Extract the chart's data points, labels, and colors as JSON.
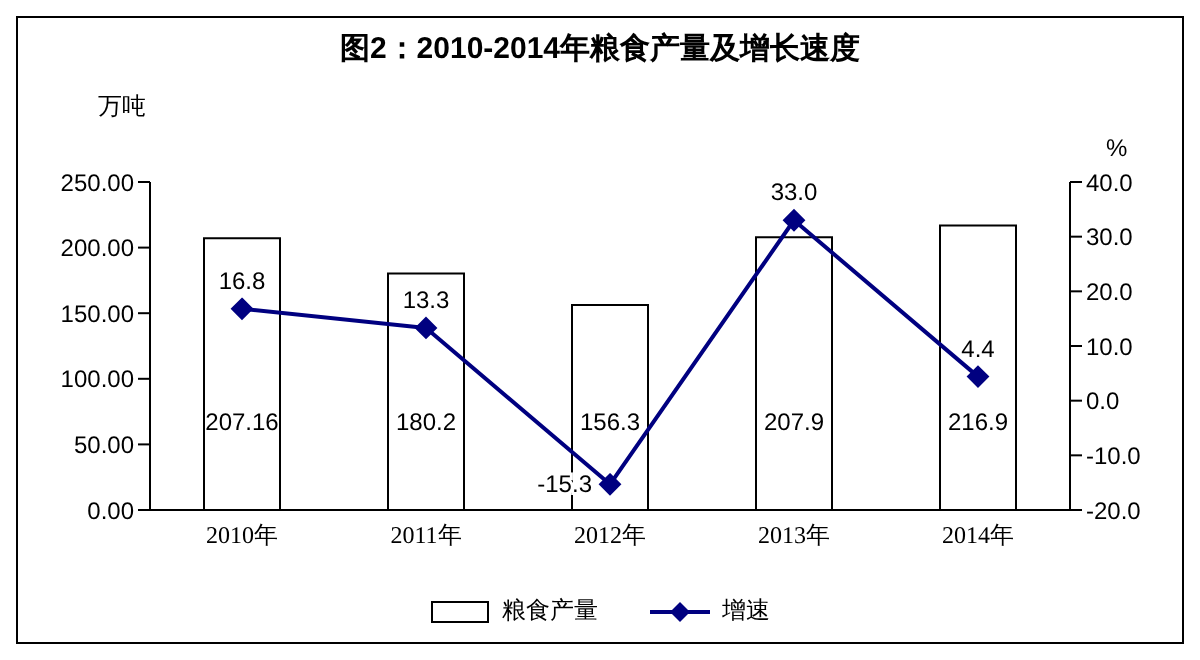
{
  "chart_data": {
    "type": "bar",
    "title": "图2：2010-2014年粮食产量及增长速度",
    "ylabel": "万吨",
    "y2label": "%",
    "categories": [
      "2010年",
      "2011年",
      "2012年",
      "2013年",
      "2014年"
    ],
    "series": [
      {
        "name": "粮食产量",
        "color": "#ffffff",
        "values": [
          207.16,
          180.2,
          156.3,
          207.9,
          216.9
        ],
        "value_labels": [
          "207.16",
          "180.2",
          "156.3",
          "207.9",
          "216.9"
        ]
      },
      {
        "name": "增速",
        "type": "line",
        "axis": "y2",
        "color": "#000080",
        "marker": "diamond",
        "values": [
          16.8,
          13.3,
          -15.3,
          33.0,
          4.4
        ],
        "value_labels": [
          "16.8",
          "13.3",
          "-15.3",
          "33.0",
          "4.4"
        ]
      }
    ],
    "ylim": [
      0,
      250
    ],
    "yticks": [
      {
        "value": 0,
        "label": "0.00"
      },
      {
        "value": 50,
        "label": "50.00"
      },
      {
        "value": 100,
        "label": "100.00"
      },
      {
        "value": 150,
        "label": "150.00"
      },
      {
        "value": 200,
        "label": "200.00"
      },
      {
        "value": 250,
        "label": "250.00"
      }
    ],
    "y2lim": [
      -20,
      40
    ],
    "y2ticks": [
      {
        "value": -20,
        "label": "-20.0"
      },
      {
        "value": -10,
        "label": "-10.0"
      },
      {
        "value": 0,
        "label": "0.0"
      },
      {
        "value": 10,
        "label": "10.0"
      },
      {
        "value": 20,
        "label": "20.0"
      },
      {
        "value": 30,
        "label": "30.0"
      },
      {
        "value": 40,
        "label": "40.0"
      }
    ],
    "grid": false,
    "legend": "bottom"
  }
}
